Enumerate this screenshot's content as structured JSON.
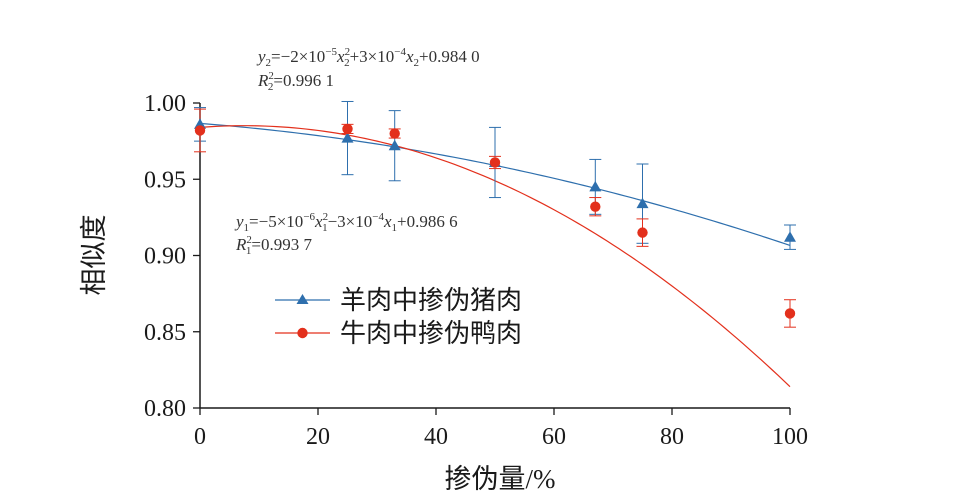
{
  "chart_data": {
    "type": "scatter",
    "xlabel": "掺伪量/%",
    "ylabel": "相似度",
    "xlim": [
      0,
      100
    ],
    "ylim": [
      0.8,
      1.0
    ],
    "xticks": [
      "0",
      "20",
      "40",
      "60",
      "80",
      "100"
    ],
    "yticks": [
      "0.80",
      "0.85",
      "0.90",
      "0.95",
      "1.00"
    ],
    "series": [
      {
        "name": "羊肉中掺伪猪肉",
        "marker": "triangle",
        "color": "#2e6fad",
        "x": [
          0,
          25,
          33,
          50,
          67,
          75,
          100
        ],
        "y": [
          0.986,
          0.977,
          0.972,
          0.961,
          0.945,
          0.934,
          0.912
        ],
        "err": [
          0.011,
          0.024,
          0.023,
          0.023,
          0.018,
          0.026,
          0.008
        ],
        "fit": {
          "a": -5e-06,
          "b": -0.0003,
          "c": 0.9866
        }
      },
      {
        "name": "牛肉中掺伪鸭肉",
        "marker": "circle",
        "color": "#e3301c",
        "x": [
          0,
          25,
          33,
          50,
          67,
          75,
          100
        ],
        "y": [
          0.982,
          0.983,
          0.98,
          0.961,
          0.932,
          0.915,
          0.862
        ],
        "err": [
          0.014,
          0.003,
          0.003,
          0.004,
          0.006,
          0.009,
          0.009
        ],
        "fit": {
          "a": -2e-05,
          "b": 0.0003,
          "c": 0.984
        }
      }
    ],
    "annotations": {
      "eq2": {
        "y": "y",
        "sub": "2",
        "rest1": "=−2×10",
        "exp1": "−5",
        "x": "x",
        "xsub": "2",
        "xsup": "2",
        "rest2": "+3×10",
        "exp2": "−4",
        "rest3": "+0.984 0"
      },
      "r2": {
        "R": "R",
        "sub": "2",
        "sup": "2",
        "val": "=0.996 1"
      },
      "eq1": {
        "y": "y",
        "sub": "1",
        "rest1": "=−5×10",
        "exp1": "−6",
        "x": "x",
        "xsub": "1",
        "xsup": "2",
        "rest2": "−3×10",
        "exp2": "−4",
        "rest3": "+0.986 6"
      },
      "r1": {
        "R": "R",
        "sub": "1",
        "sup": "2",
        "val": "=0.993 7"
      }
    }
  }
}
